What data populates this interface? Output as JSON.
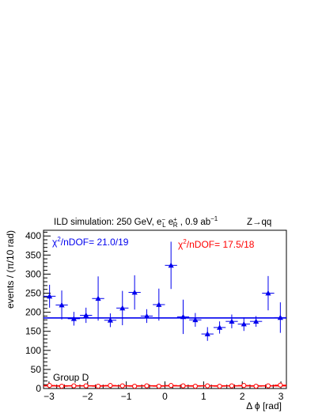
{
  "chart_data": {
    "type": "scatter",
    "header_left": {
      "base": "ILD simulation: 250 GeV, e",
      "m1_sup": "−",
      "m1_sub": "L",
      "sep": " e",
      "m2_sup": "+",
      "m2_sub": "R",
      "tail": " , 0.9 ab",
      "tail_sup": "−1"
    },
    "header_right": "Z→qq",
    "xlabel": "Δ ϕ [rad]",
    "ylabel": "events / (π/10 rad)",
    "xlim": [
      -3.14159,
      3.14159
    ],
    "ylim": [
      0,
      415
    ],
    "x_ticks": [
      -3,
      -2,
      -1,
      0,
      1,
      2,
      3
    ],
    "x_tick_labels": [
      "−3",
      "−2",
      "−1",
      "0",
      "1",
      "2",
      "3"
    ],
    "y_ticks": [
      0,
      50,
      100,
      150,
      200,
      250,
      300,
      350,
      400
    ],
    "y_tick_labels": [
      "0",
      "50",
      "100",
      "150",
      "200",
      "250",
      "300",
      "350",
      "400"
    ],
    "annotation": "Group D",
    "series": [
      {
        "color": "#0000ee",
        "marker": "triangle-filled",
        "chi2_label": "χ",
        "chi2_sup": "2",
        "chi2_rest": "/nDOF= 21.0/19",
        "fit_value": 185,
        "x": [
          -2.985,
          -2.67,
          -2.356,
          -2.042,
          -1.728,
          -1.414,
          -1.1,
          -0.785,
          -0.471,
          -0.157,
          0.157,
          0.471,
          0.785,
          1.1,
          1.414,
          1.728,
          2.042,
          2.356,
          2.67,
          2.985
        ],
        "y": [
          242,
          219,
          183,
          192,
          236,
          179,
          211,
          252,
          190,
          220,
          323,
          188,
          180,
          143,
          160,
          176,
          169,
          176,
          250,
          186
        ],
        "err": [
          30,
          38,
          18,
          20,
          58,
          18,
          45,
          45,
          18,
          42,
          62,
          45,
          18,
          18,
          16,
          18,
          18,
          14,
          45,
          40
        ]
      },
      {
        "color": "#ff0000",
        "marker": "circle-open",
        "chi2_label": "χ",
        "chi2_sup": "2",
        "chi2_rest": "/nDOF= 17.5/18",
        "fit_value": 7,
        "x": [
          -2.985,
          -2.67,
          -2.356,
          -2.042,
          -1.728,
          -1.414,
          -1.1,
          -0.785,
          -0.471,
          -0.157,
          0.157,
          0.471,
          0.785,
          1.1,
          1.414,
          1.728,
          2.042,
          2.356,
          2.67,
          2.985
        ],
        "y": [
          8,
          6,
          7,
          7,
          6,
          8,
          7,
          6,
          7,
          6,
          8,
          7,
          6,
          7,
          6,
          7,
          8,
          6,
          7,
          9
        ],
        "err": [
          3,
          3,
          3,
          3,
          3,
          3,
          3,
          3,
          3,
          3,
          3,
          3,
          3,
          3,
          3,
          3,
          3,
          3,
          3,
          3
        ]
      }
    ]
  }
}
